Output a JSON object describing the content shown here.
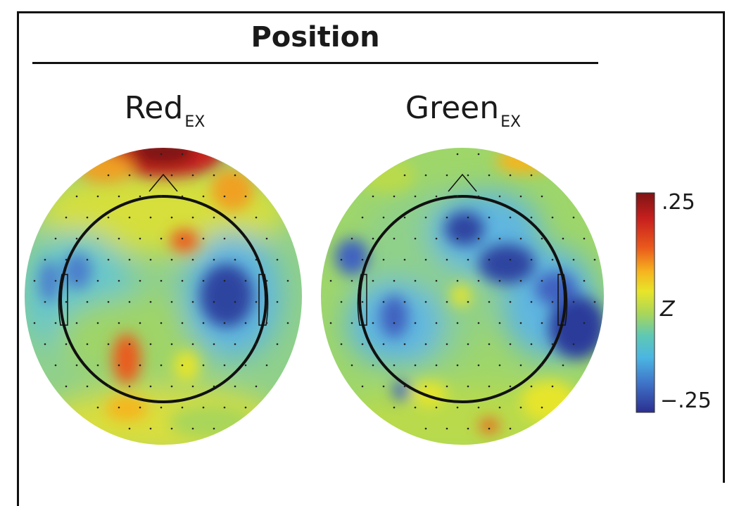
{
  "figure": {
    "title": "Position",
    "panels": [
      {
        "label": "Red",
        "subscript": "EX"
      },
      {
        "label": "Green",
        "subscript": "EX"
      }
    ],
    "colorbar": {
      "max_label": ".25",
      "min_label": "−.25",
      "mid_label": "Z"
    }
  },
  "chart_data": {
    "type": "heatmap",
    "title": "Position",
    "colorbar_label": "Z",
    "value_range": [
      -0.25,
      0.25
    ],
    "colormap": [
      "#2b2f8f",
      "#3f72c8",
      "#4bb6e2",
      "#5fc8b4",
      "#a9d65a",
      "#e7e52a",
      "#f6b51f",
      "#ea5a1c",
      "#c8201e",
      "#7e1414"
    ],
    "maps": [
      {
        "name": "Red",
        "subscript": "EX",
        "blobs": [
          {
            "location": "frontal midline (top)",
            "z": 0.25
          },
          {
            "location": "frontal right",
            "z": 0.15
          },
          {
            "location": "central right",
            "z": 0.14
          },
          {
            "location": "left posterior",
            "z": 0.15
          },
          {
            "location": "right temporal",
            "z": -0.22
          },
          {
            "location": "left temporal",
            "z": -0.08
          },
          {
            "location": "occipital",
            "z": 0.08
          }
        ]
      },
      {
        "name": "Green",
        "subscript": "EX",
        "blobs": [
          {
            "location": "frontal right",
            "z": -0.18
          },
          {
            "location": "right central",
            "z": -0.2
          },
          {
            "location": "right temporal",
            "z": -0.24
          },
          {
            "location": "left temporal",
            "z": -0.16
          },
          {
            "location": "left parietal",
            "z": -0.15
          },
          {
            "location": "top right rim",
            "z": 0.12
          },
          {
            "location": "midline",
            "z": 0.05
          }
        ]
      }
    ]
  }
}
